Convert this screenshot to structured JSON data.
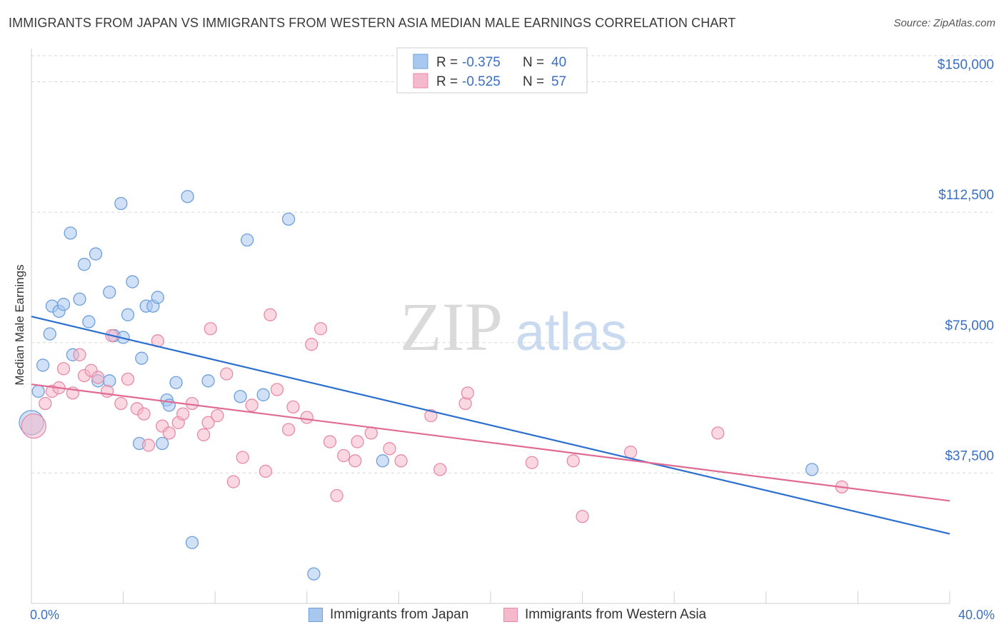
{
  "title": "IMMIGRANTS FROM JAPAN VS IMMIGRANTS FROM WESTERN ASIA MEDIAN MALE EARNINGS CORRELATION CHART",
  "source": "Source: ZipAtlas.com",
  "watermark": {
    "zip": "ZIP",
    "atlas": "atlas"
  },
  "colors": {
    "japan_fill": "#a9c8f0",
    "japan_stroke": "#6e9fdc",
    "japan_line": "#2a6fd0",
    "wasia_fill": "#f6b8cb",
    "wasia_stroke": "#e88aa8",
    "wasia_line": "#e06a93",
    "tick_text": "#3a6fc4",
    "grid": "#d8d8d8"
  },
  "legend": {
    "rows": [
      {
        "r_label": "R = ",
        "r_value": "-0.375",
        "n_label": "N = ",
        "n_value": "40"
      },
      {
        "r_label": "R = ",
        "r_value": "-0.525",
        "n_label": "N = ",
        "n_value": "57"
      }
    ]
  },
  "bottom_legend": {
    "japan": "Immigrants from Japan",
    "wasia": "Immigrants from Western Asia"
  },
  "chart_data": {
    "type": "scatter",
    "title": "IMMIGRANTS FROM JAPAN VS IMMIGRANTS FROM WESTERN ASIA MEDIAN MALE EARNINGS CORRELATION CHART",
    "xlabel": "",
    "ylabel": "Median Male Earnings",
    "xlim": [
      0,
      40
    ],
    "ylim": [
      0,
      157500
    ],
    "x_tick_labels": [
      "0.0%",
      "40.0%"
    ],
    "y_ticks": [
      37500,
      75000,
      112500,
      150000
    ],
    "y_tick_labels": [
      "$37,500",
      "$75,000",
      "$112,500",
      "$150,000"
    ],
    "grid": true,
    "legend_position": "top-center",
    "series": [
      {
        "name": "Immigrants from Japan",
        "R": -0.375,
        "N": 40,
        "trend": {
          "x": [
            0,
            40
          ],
          "y": [
            82500,
            20000
          ]
        },
        "points": [
          {
            "x": 0.0,
            "y": 52000,
            "big": true
          },
          {
            "x": 0.3,
            "y": 61000
          },
          {
            "x": 0.5,
            "y": 68500
          },
          {
            "x": 0.8,
            "y": 77500
          },
          {
            "x": 0.9,
            "y": 85500
          },
          {
            "x": 1.2,
            "y": 84000
          },
          {
            "x": 1.4,
            "y": 86000
          },
          {
            "x": 1.7,
            "y": 106500
          },
          {
            "x": 1.8,
            "y": 71500
          },
          {
            "x": 2.1,
            "y": 87500
          },
          {
            "x": 2.3,
            "y": 97500
          },
          {
            "x": 2.5,
            "y": 81000
          },
          {
            "x": 2.8,
            "y": 100500
          },
          {
            "x": 2.9,
            "y": 64000
          },
          {
            "x": 3.4,
            "y": 89500
          },
          {
            "x": 3.4,
            "y": 64000
          },
          {
            "x": 3.6,
            "y": 77000
          },
          {
            "x": 3.9,
            "y": 115000
          },
          {
            "x": 4.0,
            "y": 76500
          },
          {
            "x": 4.2,
            "y": 83000
          },
          {
            "x": 4.4,
            "y": 92500
          },
          {
            "x": 4.7,
            "y": 46000
          },
          {
            "x": 4.8,
            "y": 70500
          },
          {
            "x": 5.0,
            "y": 85500
          },
          {
            "x": 5.3,
            "y": 85500
          },
          {
            "x": 5.5,
            "y": 88000
          },
          {
            "x": 5.7,
            "y": 46000
          },
          {
            "x": 5.9,
            "y": 58500
          },
          {
            "x": 6.0,
            "y": 57000
          },
          {
            "x": 6.3,
            "y": 63500
          },
          {
            "x": 6.8,
            "y": 117000
          },
          {
            "x": 7.0,
            "y": 17500
          },
          {
            "x": 7.7,
            "y": 64000
          },
          {
            "x": 9.1,
            "y": 59500
          },
          {
            "x": 9.4,
            "y": 104500
          },
          {
            "x": 10.1,
            "y": 60000
          },
          {
            "x": 11.2,
            "y": 110500
          },
          {
            "x": 12.3,
            "y": 8500
          },
          {
            "x": 15.3,
            "y": 41000
          },
          {
            "x": 34.0,
            "y": 38500
          }
        ]
      },
      {
        "name": "Immigrants from Western Asia",
        "R": -0.525,
        "N": 57,
        "trend": {
          "x": [
            0,
            40
          ],
          "y": [
            63000,
            29500
          ]
        },
        "points": [
          {
            "x": 0.1,
            "y": 51000,
            "big": true
          },
          {
            "x": 0.6,
            "y": 57500
          },
          {
            "x": 0.9,
            "y": 61000
          },
          {
            "x": 1.2,
            "y": 62000
          },
          {
            "x": 1.4,
            "y": 67500
          },
          {
            "x": 1.8,
            "y": 60500
          },
          {
            "x": 2.1,
            "y": 71500
          },
          {
            "x": 2.3,
            "y": 65500
          },
          {
            "x": 2.6,
            "y": 67000
          },
          {
            "x": 2.9,
            "y": 65000
          },
          {
            "x": 3.3,
            "y": 61000
          },
          {
            "x": 3.5,
            "y": 77000
          },
          {
            "x": 3.9,
            "y": 57500
          },
          {
            "x": 4.2,
            "y": 64500
          },
          {
            "x": 4.6,
            "y": 56000
          },
          {
            "x": 4.9,
            "y": 54500
          },
          {
            "x": 5.1,
            "y": 45500
          },
          {
            "x": 5.5,
            "y": 75500
          },
          {
            "x": 5.7,
            "y": 51000
          },
          {
            "x": 6.0,
            "y": 49000
          },
          {
            "x": 6.4,
            "y": 52000
          },
          {
            "x": 6.6,
            "y": 54500
          },
          {
            "x": 7.0,
            "y": 57500
          },
          {
            "x": 7.5,
            "y": 48500
          },
          {
            "x": 7.7,
            "y": 52000
          },
          {
            "x": 7.8,
            "y": 79000
          },
          {
            "x": 8.1,
            "y": 54000
          },
          {
            "x": 8.5,
            "y": 66000
          },
          {
            "x": 8.8,
            "y": 35000
          },
          {
            "x": 9.2,
            "y": 42000
          },
          {
            "x": 9.6,
            "y": 57000
          },
          {
            "x": 10.2,
            "y": 38000
          },
          {
            "x": 10.4,
            "y": 83000
          },
          {
            "x": 10.7,
            "y": 61500
          },
          {
            "x": 11.2,
            "y": 50000
          },
          {
            "x": 11.4,
            "y": 56500
          },
          {
            "x": 12.0,
            "y": 53500
          },
          {
            "x": 12.2,
            "y": 74500
          },
          {
            "x": 12.6,
            "y": 79000
          },
          {
            "x": 13.0,
            "y": 46500
          },
          {
            "x": 13.3,
            "y": 31000
          },
          {
            "x": 13.6,
            "y": 42500
          },
          {
            "x": 14.1,
            "y": 41000
          },
          {
            "x": 14.2,
            "y": 46500
          },
          {
            "x": 14.8,
            "y": 49000
          },
          {
            "x": 15.6,
            "y": 44500
          },
          {
            "x": 16.1,
            "y": 41000
          },
          {
            "x": 17.4,
            "y": 54000
          },
          {
            "x": 17.8,
            "y": 38500
          },
          {
            "x": 18.9,
            "y": 57500
          },
          {
            "x": 19.0,
            "y": 60500
          },
          {
            "x": 21.8,
            "y": 40500
          },
          {
            "x": 23.6,
            "y": 41000
          },
          {
            "x": 24.0,
            "y": 25000
          },
          {
            "x": 26.1,
            "y": 43500
          },
          {
            "x": 29.9,
            "y": 49000
          },
          {
            "x": 35.3,
            "y": 33500
          }
        ]
      }
    ]
  }
}
